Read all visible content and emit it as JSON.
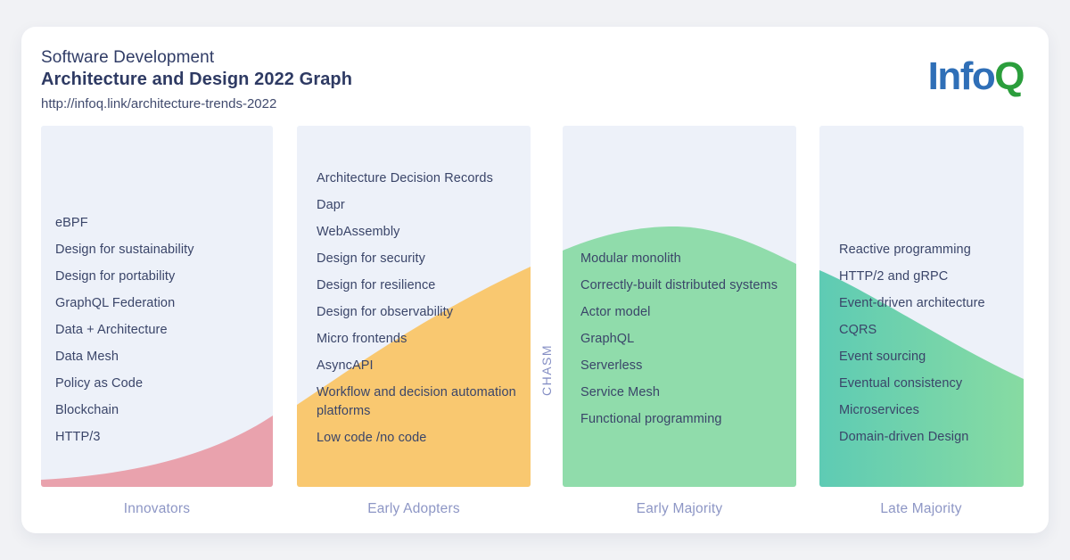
{
  "header": {
    "title_line1": "Software Development",
    "title_line2": "Architecture and Design 2022 Graph",
    "url": "http://infoq.link/architecture-trends-2022"
  },
  "logo": {
    "part1": "Info",
    "part2": "Q",
    "color1": "#2f6fb7",
    "color2": "#2b9e3c"
  },
  "chasm_label": "CHASM",
  "columns": [
    {
      "label": "Innovators",
      "wave_color": "#e9a2ad",
      "items": [
        "eBPF",
        "Design for sustainability",
        "Design for portability",
        "GraphQL Federation",
        "Data + Architecture",
        "Data Mesh",
        "Policy as Code",
        "Blockchain",
        "HTTP/3"
      ]
    },
    {
      "label": "Early Adopters",
      "wave_color": "#f9c870",
      "items": [
        "Architecture Decision Records",
        "Dapr",
        "WebAssembly",
        "Design for security",
        "Design for resilience",
        "Design for observability",
        "Micro frontends",
        "AsyncAPI",
        "Workflow and decision automation platforms",
        "Low code /no code"
      ]
    },
    {
      "label": "Early Majority",
      "wave_color": "#90dcab",
      "items": [
        "Modular monolith",
        "Correctly-built distributed systems",
        "Actor model",
        "GraphQL",
        "Serverless",
        "Service Mesh",
        "Functional programming"
      ]
    },
    {
      "label": "Late Majority",
      "wave_color_start": "#5ecbb4",
      "wave_color_end": "#87dba2",
      "items": [
        "Reactive programming",
        "HTTP/2 and gRPC",
        "Event-driven architecture",
        "CQRS",
        "Event sourcing",
        "Eventual consistency",
        "Microservices",
        "Domain-driven Design"
      ]
    }
  ]
}
